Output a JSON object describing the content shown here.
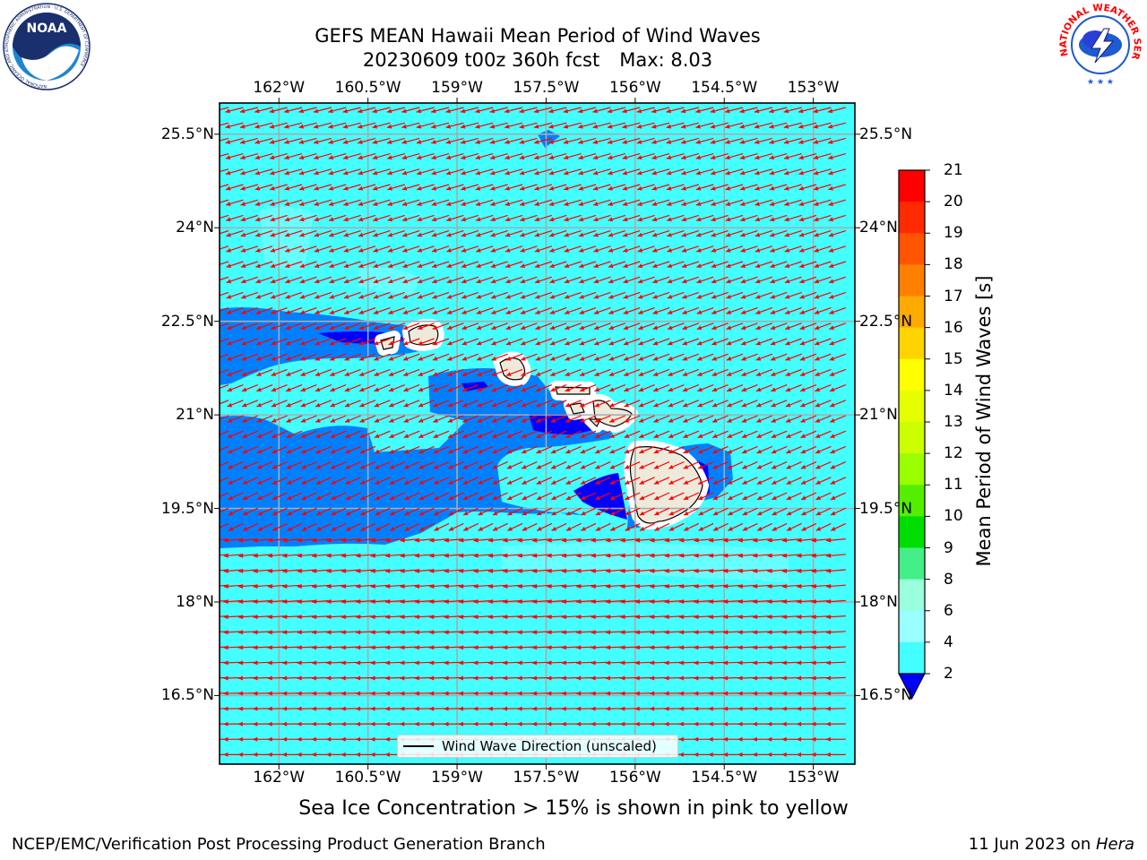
{
  "title": {
    "line1": "GEFS MEAN Hawaii Mean Period of Wind Waves",
    "line2_date": "20230609 t00z 360h fcst",
    "line2_max": "Max: 8.03"
  },
  "logos": {
    "noaa": {
      "text": "NOAA",
      "ring": "NATIONAL OCEANIC AND ATMOSPHERIC ADMINISTRATION · U.S. DEPARTMENT OF COMMERCE"
    },
    "nws": {
      "ring": "NATIONAL WEATHER SERVICE"
    }
  },
  "map": {
    "lon_ticks": [
      "162°W",
      "160.5°W",
      "159°W",
      "157.5°W",
      "156°W",
      "154.5°W",
      "153°W"
    ],
    "lat_ticks": [
      "25.5°N",
      "24°N",
      "22.5°N",
      "21°N",
      "19.5°N",
      "18°N",
      "16.5°N"
    ],
    "lon_values": [
      -162,
      -160.5,
      -159,
      -157.5,
      -156,
      -154.5,
      -153
    ],
    "lat_values": [
      25.5,
      24,
      22.5,
      21,
      19.5,
      18,
      16.5
    ],
    "lon_range": [
      -163,
      -152.3
    ],
    "lat_range": [
      15.4,
      26
    ],
    "legend_label": "Wind Wave Direction (unscaled)",
    "arrow_color": "#ff0000",
    "land_color": "#eeeadb",
    "grid_color": "#aaaaaa"
  },
  "colorbar": {
    "label": "Mean Period of Wind Waves [s]",
    "ticks": [
      "21",
      "20",
      "19",
      "18",
      "17",
      "16",
      "15",
      "14",
      "13",
      "12",
      "11",
      "10",
      "9",
      "8",
      "6",
      "4",
      "2"
    ],
    "colors": [
      "#ff0000",
      "#ff2a00",
      "#ff5500",
      "#ff8000",
      "#ffaa00",
      "#ffd400",
      "#ffff00",
      "#e6ff00",
      "#ccff00",
      "#99ff00",
      "#55ee00",
      "#00dd00",
      "#44ee88",
      "#99ffdd",
      "#99ffff",
      "#44ffff",
      "#00ffff",
      "#0080ff"
    ],
    "under_color": "#0000ff"
  },
  "subtitle": "Sea Ice Concentration > 15% is shown in pink to yellow",
  "footer": {
    "left": "NCEP/EMC/Verification Post Processing Product Generation Branch",
    "right_date": "11 Jun 2023 on ",
    "right_host": "Hera"
  }
}
